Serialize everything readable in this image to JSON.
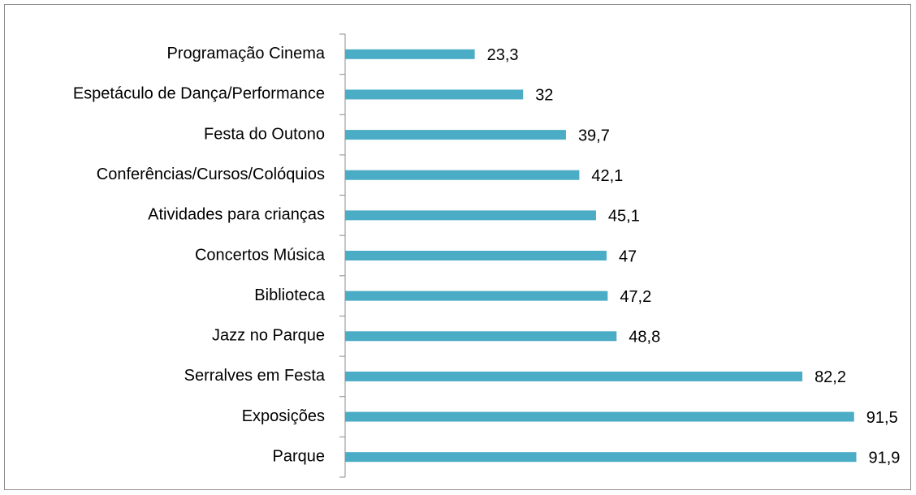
{
  "chart_data": {
    "type": "hbar",
    "categories": [
      "Programação Cinema",
      "Espetáculo de Dança/Performance",
      "Festa do Outono",
      "Conferências/Cursos/Colóquios",
      "Atividades para crianças",
      "Concertos Música",
      "Biblioteca",
      "Jazz no Parque",
      "Serralves em Festa",
      "Exposições",
      "Parque"
    ],
    "values": [
      23.3,
      32,
      39.7,
      42.1,
      45.1,
      47,
      47.2,
      48.8,
      82.2,
      91.5,
      91.9
    ],
    "value_labels": [
      "23,3",
      "32",
      "39,7",
      "42,1",
      "45,1",
      "47",
      "47,2",
      "48,8",
      "82,2",
      "91,5",
      "91,9"
    ],
    "color": "#4bacc6",
    "xlim": [
      0,
      100
    ]
  }
}
